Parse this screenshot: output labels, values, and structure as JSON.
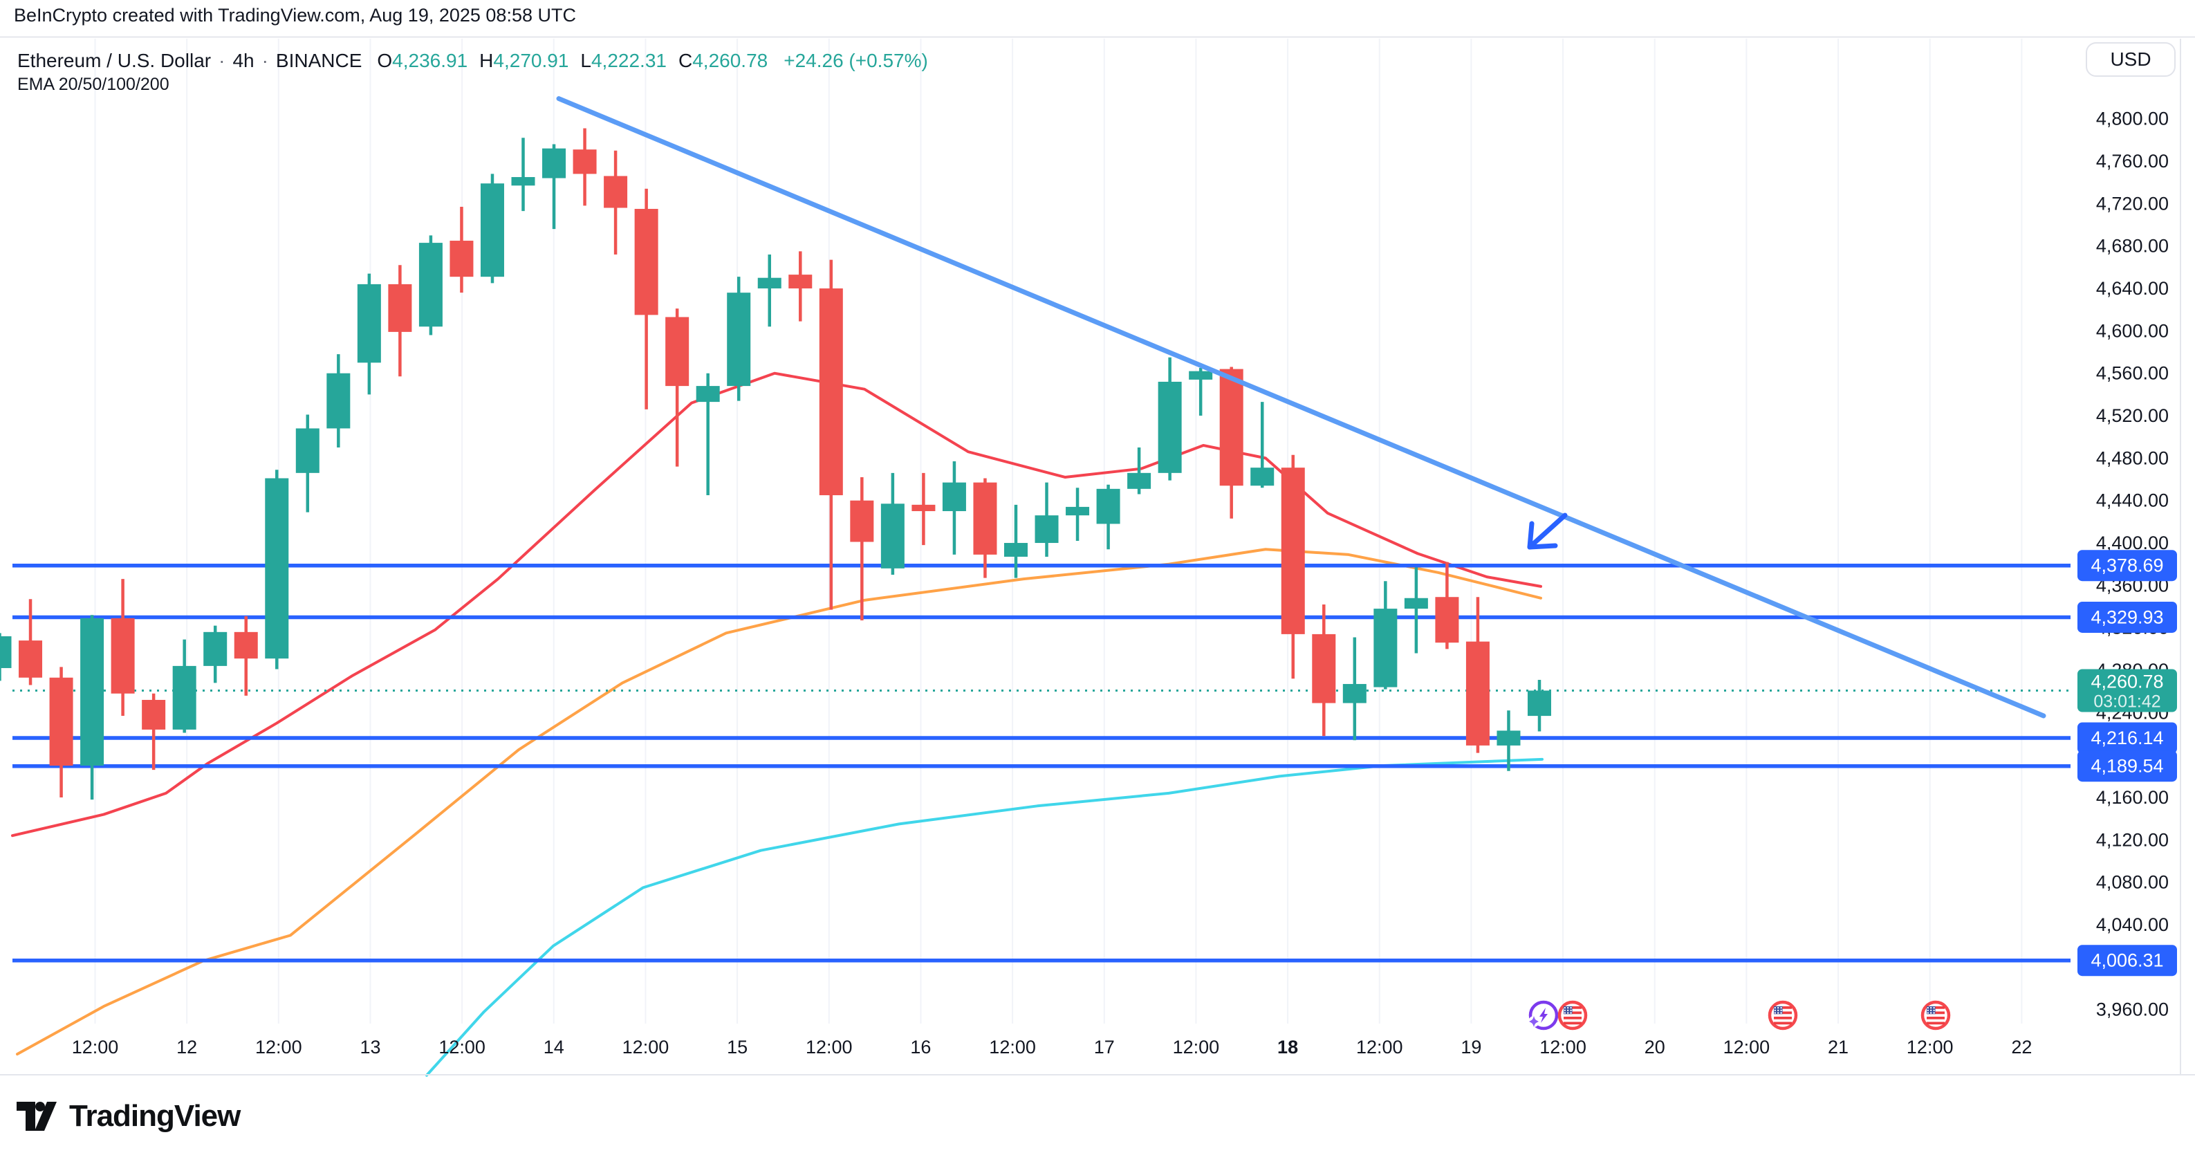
{
  "header": {
    "attribution": "BeInCrypto created with TradingView.com, Aug 19, 2025 08:58 UTC",
    "symbol_name": "Ethereum / U.S. Dollar",
    "separator": "·",
    "interval": "4h",
    "exchange": "BINANCE",
    "ohlc": {
      "o_label": "O",
      "o_value": "4,236.91",
      "h_label": "H",
      "h_value": "4,270.91",
      "l_label": "L",
      "l_value": "4,222.31",
      "c_label": "C",
      "c_value": "4,260.78",
      "change": "+24.26 (+0.57%)"
    },
    "indicator": "EMA 20/50/100/200"
  },
  "price_scale": {
    "currency_button": "USD",
    "tick_values": [
      4800,
      4760,
      4720,
      4680,
      4640,
      4600,
      4560,
      4520,
      4480,
      4440,
      4400,
      4360,
      4320,
      4280,
      4240,
      4200,
      4160,
      4120,
      4080,
      4040,
      4000,
      3960
    ],
    "tick_labels": [
      "4,800.00",
      "4,760.00",
      "4,720.00",
      "4,680.00",
      "4,640.00",
      "4,600.00",
      "4,560.00",
      "4,520.00",
      "4,480.00",
      "4,440.00",
      "4,400.00",
      "4,360.00",
      "4,320.00",
      "4,280.00",
      "4,240.00",
      "4,200.00",
      "4,160.00",
      "4,120.00",
      "4,080.00",
      "4,040.00",
      "4,000.00",
      "3,960.00"
    ]
  },
  "time_scale": {
    "ticks": [
      {
        "label": "12:00"
      },
      {
        "label": "12"
      },
      {
        "label": "12:00"
      },
      {
        "label": "13"
      },
      {
        "label": "12:00"
      },
      {
        "label": "14"
      },
      {
        "label": "12:00"
      },
      {
        "label": "15"
      },
      {
        "label": "12:00"
      },
      {
        "label": "16"
      },
      {
        "label": "12:00"
      },
      {
        "label": "17"
      },
      {
        "label": "12:00"
      },
      {
        "label": "18",
        "bold": true
      },
      {
        "label": "12:00"
      },
      {
        "label": "19"
      },
      {
        "label": "12:00"
      },
      {
        "label": "20"
      },
      {
        "label": "12:00"
      },
      {
        "label": "21"
      },
      {
        "label": "12:00"
      },
      {
        "label": "22"
      }
    ]
  },
  "chart_data": {
    "type": "candlestick",
    "title": "Ethereum / U.S. Dollar 4h BINANCE",
    "ylabel": "USD",
    "y_range": [
      3947,
      4847
    ],
    "candles": [
      [
        4282,
        4315,
        4270,
        4312
      ],
      [
        4308,
        4347,
        4266,
        4273
      ],
      [
        4273,
        4283,
        4160,
        4190
      ],
      [
        4190,
        4332,
        4158,
        4329
      ],
      [
        4329,
        4366,
        4237,
        4258
      ],
      [
        4252,
        4258,
        4186,
        4224
      ],
      [
        4224,
        4309,
        4221,
        4284
      ],
      [
        4284,
        4322,
        4268,
        4316
      ],
      [
        4316,
        4331,
        4256,
        4291
      ],
      [
        4291,
        4469,
        4281,
        4461
      ],
      [
        4466,
        4521,
        4429,
        4508
      ],
      [
        4508,
        4578,
        4490,
        4560
      ],
      [
        4570,
        4654,
        4540,
        4644
      ],
      [
        4644,
        4662,
        4557,
        4599
      ],
      [
        4604,
        4690,
        4596,
        4683
      ],
      [
        4685,
        4717,
        4636,
        4651
      ],
      [
        4651,
        4748,
        4645,
        4739
      ],
      [
        4737,
        4782,
        4713,
        4745
      ],
      [
        4744,
        4776,
        4696,
        4772
      ],
      [
        4771,
        4791,
        4718,
        4748
      ],
      [
        4746,
        4770,
        4672,
        4716
      ],
      [
        4715,
        4734,
        4526,
        4615
      ],
      [
        4613,
        4621,
        4472,
        4548
      ],
      [
        4533,
        4560,
        4445,
        4548
      ],
      [
        4548,
        4651,
        4534,
        4636
      ],
      [
        4640,
        4672,
        4604,
        4650
      ],
      [
        4653,
        4675,
        4609,
        4640
      ],
      [
        4640,
        4667,
        4337,
        4445
      ],
      [
        4440,
        4462,
        4327,
        4401
      ],
      [
        4376,
        4466,
        4370,
        4437
      ],
      [
        4436,
        4466,
        4398,
        4430
      ],
      [
        4430,
        4477,
        4389,
        4457
      ],
      [
        4457,
        4461,
        4367,
        4389
      ],
      [
        4387,
        4436,
        4367,
        4400
      ],
      [
        4400,
        4457,
        4387,
        4426
      ],
      [
        4426,
        4452,
        4402,
        4434
      ],
      [
        4418,
        4455,
        4394,
        4451
      ],
      [
        4451,
        4490,
        4446,
        4466
      ],
      [
        4466,
        4575,
        4459,
        4552
      ],
      [
        4554,
        4565,
        4520,
        4562
      ],
      [
        4564,
        4566,
        4423,
        4454
      ],
      [
        4454,
        4533,
        4452,
        4471
      ],
      [
        4471,
        4483,
        4272,
        4314
      ],
      [
        4314,
        4342,
        4218,
        4249
      ],
      [
        4249,
        4311,
        4214,
        4267
      ],
      [
        4264,
        4364,
        4262,
        4338
      ],
      [
        4338,
        4377,
        4296,
        4348
      ],
      [
        4349,
        4382,
        4300,
        4306
      ],
      [
        4307,
        4349,
        4202,
        4209
      ],
      [
        4209,
        4242,
        4185,
        4223
      ],
      [
        4236.91,
        4270.91,
        4222.31,
        4260.78
      ]
    ],
    "emas": [
      {
        "name": "ema-cyan-200",
        "color": "#40d6ea",
        "points": [
          [
            617,
            3898
          ],
          [
            700,
            3958
          ],
          [
            800,
            4020
          ],
          [
            930,
            4075
          ],
          [
            1100,
            4110
          ],
          [
            1300,
            4135
          ],
          [
            1500,
            4152
          ],
          [
            1690,
            4164
          ],
          [
            1850,
            4180
          ],
          [
            2000,
            4190
          ],
          [
            2230,
            4196
          ]
        ]
      },
      {
        "name": "ema-orange-100",
        "color": "#ffa247",
        "points": [
          [
            25,
            3918
          ],
          [
            150,
            3963
          ],
          [
            294,
            4006
          ],
          [
            420,
            4030
          ],
          [
            600,
            4125
          ],
          [
            750,
            4205
          ],
          [
            900,
            4268
          ],
          [
            1050,
            4315
          ],
          [
            1250,
            4346
          ],
          [
            1480,
            4366
          ],
          [
            1690,
            4380
          ],
          [
            1830,
            4394
          ],
          [
            1950,
            4389
          ],
          [
            2080,
            4372
          ],
          [
            2228,
            4348
          ]
        ]
      },
      {
        "name": "ema-red-50",
        "color": "#f4434f",
        "points": [
          [
            18,
            4124
          ],
          [
            150,
            4144
          ],
          [
            240,
            4164
          ],
          [
            300,
            4192
          ],
          [
            400,
            4230
          ],
          [
            510,
            4275
          ],
          [
            629,
            4318
          ],
          [
            720,
            4366
          ],
          [
            860,
            4450
          ],
          [
            1000,
            4532
          ],
          [
            1120,
            4560
          ],
          [
            1250,
            4545
          ],
          [
            1400,
            4486
          ],
          [
            1540,
            4462
          ],
          [
            1650,
            4470
          ],
          [
            1740,
            4492
          ],
          [
            1830,
            4480
          ],
          [
            1920,
            4428
          ],
          [
            2050,
            4390
          ],
          [
            2150,
            4368
          ],
          [
            2228,
            4359
          ]
        ]
      }
    ],
    "levels": [
      {
        "value": 4378.69,
        "label": "4,378.69"
      },
      {
        "value": 4329.93,
        "label": "4,329.93"
      },
      {
        "value": 4216.14,
        "label": "4,216.14"
      },
      {
        "value": 4189.54,
        "label": "4,189.54"
      },
      {
        "value": 4006.31,
        "label": "4,006.31"
      }
    ],
    "last_price": {
      "value": 4260.78,
      "label": "4,260.78",
      "countdown": "03:01:42",
      "direction": "up"
    },
    "trendline": {
      "x1": 808,
      "price1": 4819,
      "x2": 2955,
      "price2": 4237
    },
    "arrow": {
      "tail_x": 2263,
      "tail_y": 745,
      "tip_x": 2212,
      "tip_y": 791
    },
    "events": [
      {
        "kind": "ai-spark",
        "x": 2232
      },
      {
        "kind": "us-economic",
        "x": 2274
      },
      {
        "kind": "us-economic",
        "x": 2578
      },
      {
        "kind": "us-economic",
        "x": 2799
      }
    ]
  },
  "footer": {
    "brand": "TradingView"
  },
  "colors": {
    "up": "#26a69a",
    "down": "#ef5350",
    "level": "#2962ff",
    "trend": "#5b9cf6",
    "arrow": "#2962ff",
    "text": "#131722",
    "grid": "#f1f3f8",
    "separator": "#e4e6ec",
    "tag_text": "#ffffff"
  }
}
